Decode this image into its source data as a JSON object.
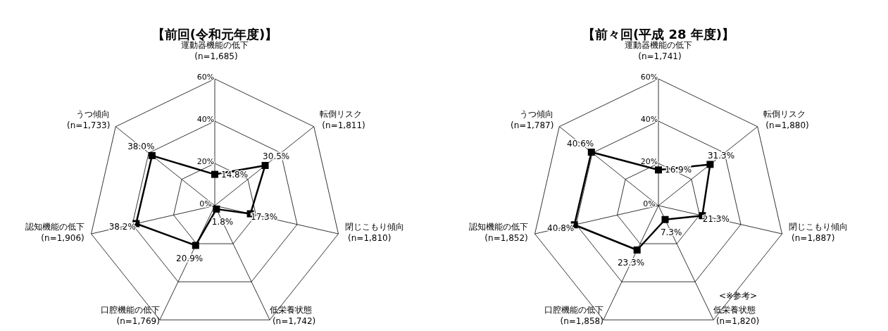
{
  "chart_data": [
    {
      "type": "radar",
      "title": "【前回(令和元年度)】",
      "categories": [
        "運動器機能の低下\n(n=1,685)",
        "転倒リスク\n(n=1,811)",
        "閉じこもり傾向\n(n=1,810)",
        "低栄養状態\n(n=1,742)",
        "口腔機能の低下\n(n=1,769)",
        "認知機能の低下\n(n=1,906)",
        "うつ傾向\n(n=1,733)"
      ],
      "series": [
        {
          "color": "#000000",
          "values": [
            14.8,
            30.5,
            17.3,
            1.8,
            20.9,
            38.2,
            38.0
          ],
          "value_labels": [
            "14.8%",
            "30.5%",
            "17.3%",
            "1.8%",
            "20.9%",
            "38.2%",
            "38.0%"
          ]
        }
      ],
      "ylim": [
        0,
        60
      ],
      "yticks": [
        {
          "value": 0,
          "label": "0%"
        },
        {
          "value": 20,
          "label": "20%"
        },
        {
          "value": 40,
          "label": "40%"
        },
        {
          "value": 60,
          "label": "60%"
        }
      ],
      "grid": true,
      "marker": "square",
      "line_style": "solid"
    },
    {
      "type": "radar",
      "title": "【前々回(平成 28 年度)】",
      "categories": [
        "運動器機能の低下\n(n=1,741)",
        "転倒リスク\n(n=1,880)",
        "閉じこもり傾向\n(n=1,887)",
        "低栄養状態\n(n=1,820)",
        "口腔機能の低下\n(n=1,858)",
        "認知機能の低下\n(n=1,852)",
        "うつ傾向\n(n=1,787)"
      ],
      "series": [
        {
          "color": "#000000",
          "values": [
            16.9,
            31.3,
            21.3,
            7.3,
            23.3,
            40.8,
            40.6
          ],
          "value_labels": [
            "16.9%",
            "31.3%",
            "21.3%",
            "7.3%",
            "23.3%",
            "40.8%",
            "40.6%"
          ]
        }
      ],
      "ylim": [
        0,
        60
      ],
      "yticks": [
        {
          "value": 0,
          "label": "0%"
        },
        {
          "value": 20,
          "label": "20%"
        },
        {
          "value": 40,
          "label": "40%"
        },
        {
          "value": 60,
          "label": "60%"
        }
      ],
      "grid": true,
      "marker": "square",
      "line_style": "solid",
      "annotations": [
        "<※参考>"
      ]
    }
  ]
}
